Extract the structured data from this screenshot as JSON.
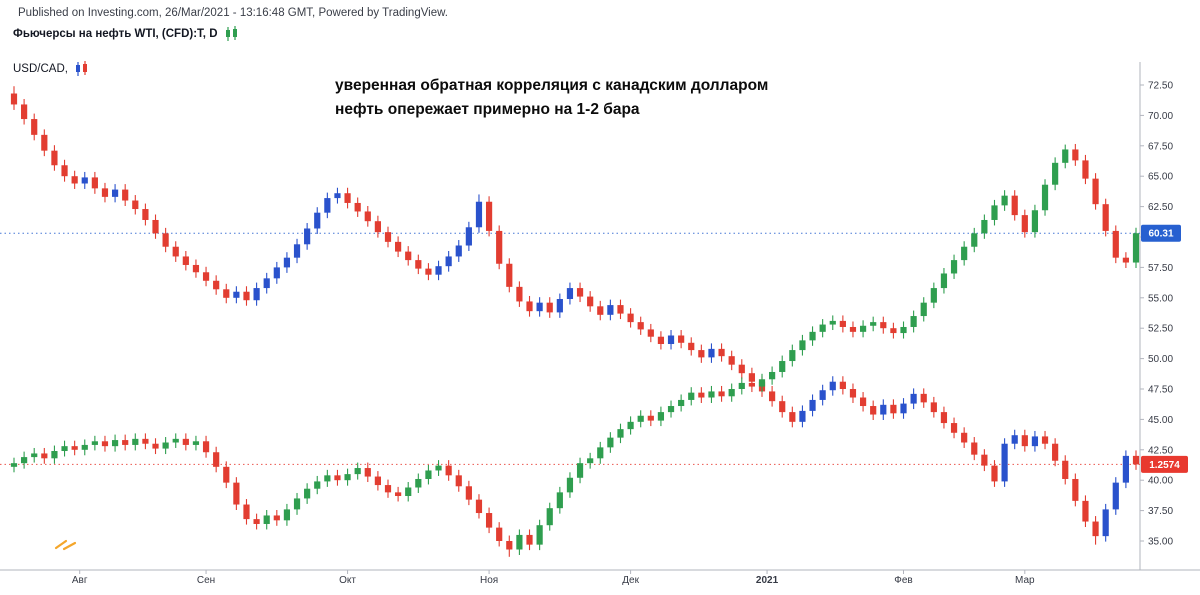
{
  "header": {
    "published_line": "Published on Investing.com, 26/Mar/2021 - 13:16:48 GMT, Powered by TradingView.",
    "symbol_title": "Фьючерсы на нефть WTI, (CFD):T, D",
    "overlay_symbol": "USD/CAD,"
  },
  "annotation": {
    "line1": "уверенная обратная корреляция с канадским долларом",
    "line2": "нефть опережает примерно на 1-2 бара"
  },
  "watermark_mark": {
    "color": "#f4a62a"
  },
  "chart_data": {
    "type": "candlestick-overlay",
    "title": "Фьючерсы на нефть WTI, (CFD):T, D с наложением USD/CAD",
    "grid": false,
    "legend_position": "top-left",
    "y_axis": {
      "side": "right",
      "tick_min": 35.0,
      "tick_max": 72.5,
      "tick_step": 2.5,
      "tick_format_decimals": 2
    },
    "x_axis": {
      "labels": [
        {
          "text": "Авг",
          "bar": 6.5
        },
        {
          "text": "Сен",
          "bar": 19
        },
        {
          "text": "Окт",
          "bar": 33
        },
        {
          "text": "Ноя",
          "bar": 47
        },
        {
          "text": "Дек",
          "bar": 61
        },
        {
          "text": "2021",
          "bar": 74.5,
          "bold": true
        },
        {
          "text": "Фев",
          "bar": 88
        },
        {
          "text": "Мар",
          "bar": 100
        }
      ]
    },
    "series": [
      {
        "name": "Фьючерсы на нефть WTI, (CFD):T, D",
        "up_color": "#2f9e4f",
        "down_color": "#e23d31",
        "label_color": "#2760d0",
        "last_price_label": "60.31",
        "last_display_value": 60.31,
        "first_open_delta": -0.3,
        "wick": 0.45,
        "wick_overrides": [
          {
            "i": 49,
            "low": 33.7
          },
          {
            "i": 104,
            "high": 67.6
          }
        ],
        "closes": [
          41.4,
          41.9,
          42.2,
          41.8,
          42.4,
          42.8,
          42.5,
          42.9,
          43.2,
          42.8,
          43.3,
          42.9,
          43.4,
          43.0,
          42.6,
          43.1,
          43.4,
          42.9,
          43.2,
          42.3,
          41.1,
          39.8,
          38.0,
          36.8,
          36.4,
          37.1,
          36.7,
          37.6,
          38.5,
          39.3,
          39.9,
          40.4,
          40.0,
          40.5,
          41.0,
          40.3,
          39.6,
          39.0,
          38.7,
          39.4,
          40.1,
          40.8,
          41.2,
          40.4,
          39.5,
          38.4,
          37.3,
          36.1,
          35.0,
          34.3,
          35.5,
          34.7,
          36.3,
          37.7,
          39.0,
          40.2,
          41.4,
          41.8,
          42.7,
          43.5,
          44.2,
          44.8,
          45.3,
          44.9,
          45.6,
          46.1,
          46.6,
          47.2,
          46.8,
          47.3,
          46.9,
          47.5,
          48.0,
          47.7,
          48.3,
          48.9,
          49.8,
          50.7,
          51.5,
          52.2,
          52.8,
          53.1,
          52.6,
          52.2,
          52.7,
          53.0,
          52.5,
          52.1,
          52.6,
          53.5,
          54.6,
          55.8,
          57.0,
          58.1,
          59.2,
          60.3,
          61.4,
          62.6,
          63.4,
          61.8,
          60.4,
          62.2,
          64.3,
          66.1,
          67.2,
          66.3,
          64.8,
          62.7,
          60.5,
          58.3,
          57.9,
          60.31
        ]
      },
      {
        "name": "USD/CAD",
        "up_color": "#2a52cc",
        "down_color": "#e23d31",
        "label_color": "#e8392f",
        "last_price_label": "1.2574",
        "last_display_value": 41.3,
        "first_open_delta": 0.9,
        "wick": 0.45,
        "wick_overrides": [
          {
            "i": 0,
            "high": 72.4
          },
          {
            "i": 46,
            "high": 63.5
          },
          {
            "i": 107,
            "low": 34.7
          }
        ],
        "closes": [
          70.9,
          69.7,
          68.4,
          67.1,
          65.9,
          65.0,
          64.4,
          64.9,
          64.0,
          63.3,
          63.9,
          63.0,
          62.3,
          61.4,
          60.3,
          59.2,
          58.4,
          57.7,
          57.1,
          56.4,
          55.7,
          55.0,
          55.5,
          54.8,
          55.8,
          56.6,
          57.5,
          58.3,
          59.4,
          60.7,
          62.0,
          63.2,
          63.6,
          62.8,
          62.1,
          61.3,
          60.4,
          59.6,
          58.8,
          58.1,
          57.4,
          56.9,
          57.6,
          58.4,
          59.3,
          60.8,
          62.9,
          60.5,
          57.8,
          55.9,
          54.7,
          53.9,
          54.6,
          53.8,
          54.9,
          55.8,
          55.1,
          54.3,
          53.6,
          54.4,
          53.7,
          53.0,
          52.4,
          51.8,
          51.2,
          51.9,
          51.3,
          50.7,
          50.1,
          50.8,
          50.2,
          49.5,
          48.8,
          48.1,
          47.3,
          46.5,
          45.6,
          44.8,
          45.7,
          46.6,
          47.4,
          48.1,
          47.5,
          46.8,
          46.1,
          45.4,
          46.2,
          45.5,
          46.3,
          47.1,
          46.4,
          45.6,
          44.7,
          43.9,
          43.1,
          42.1,
          41.2,
          39.9,
          43.0,
          43.7,
          42.8,
          43.6,
          43.0,
          41.6,
          40.1,
          38.3,
          36.6,
          35.4,
          37.6,
          39.8,
          42.0,
          41.3
        ]
      }
    ]
  }
}
